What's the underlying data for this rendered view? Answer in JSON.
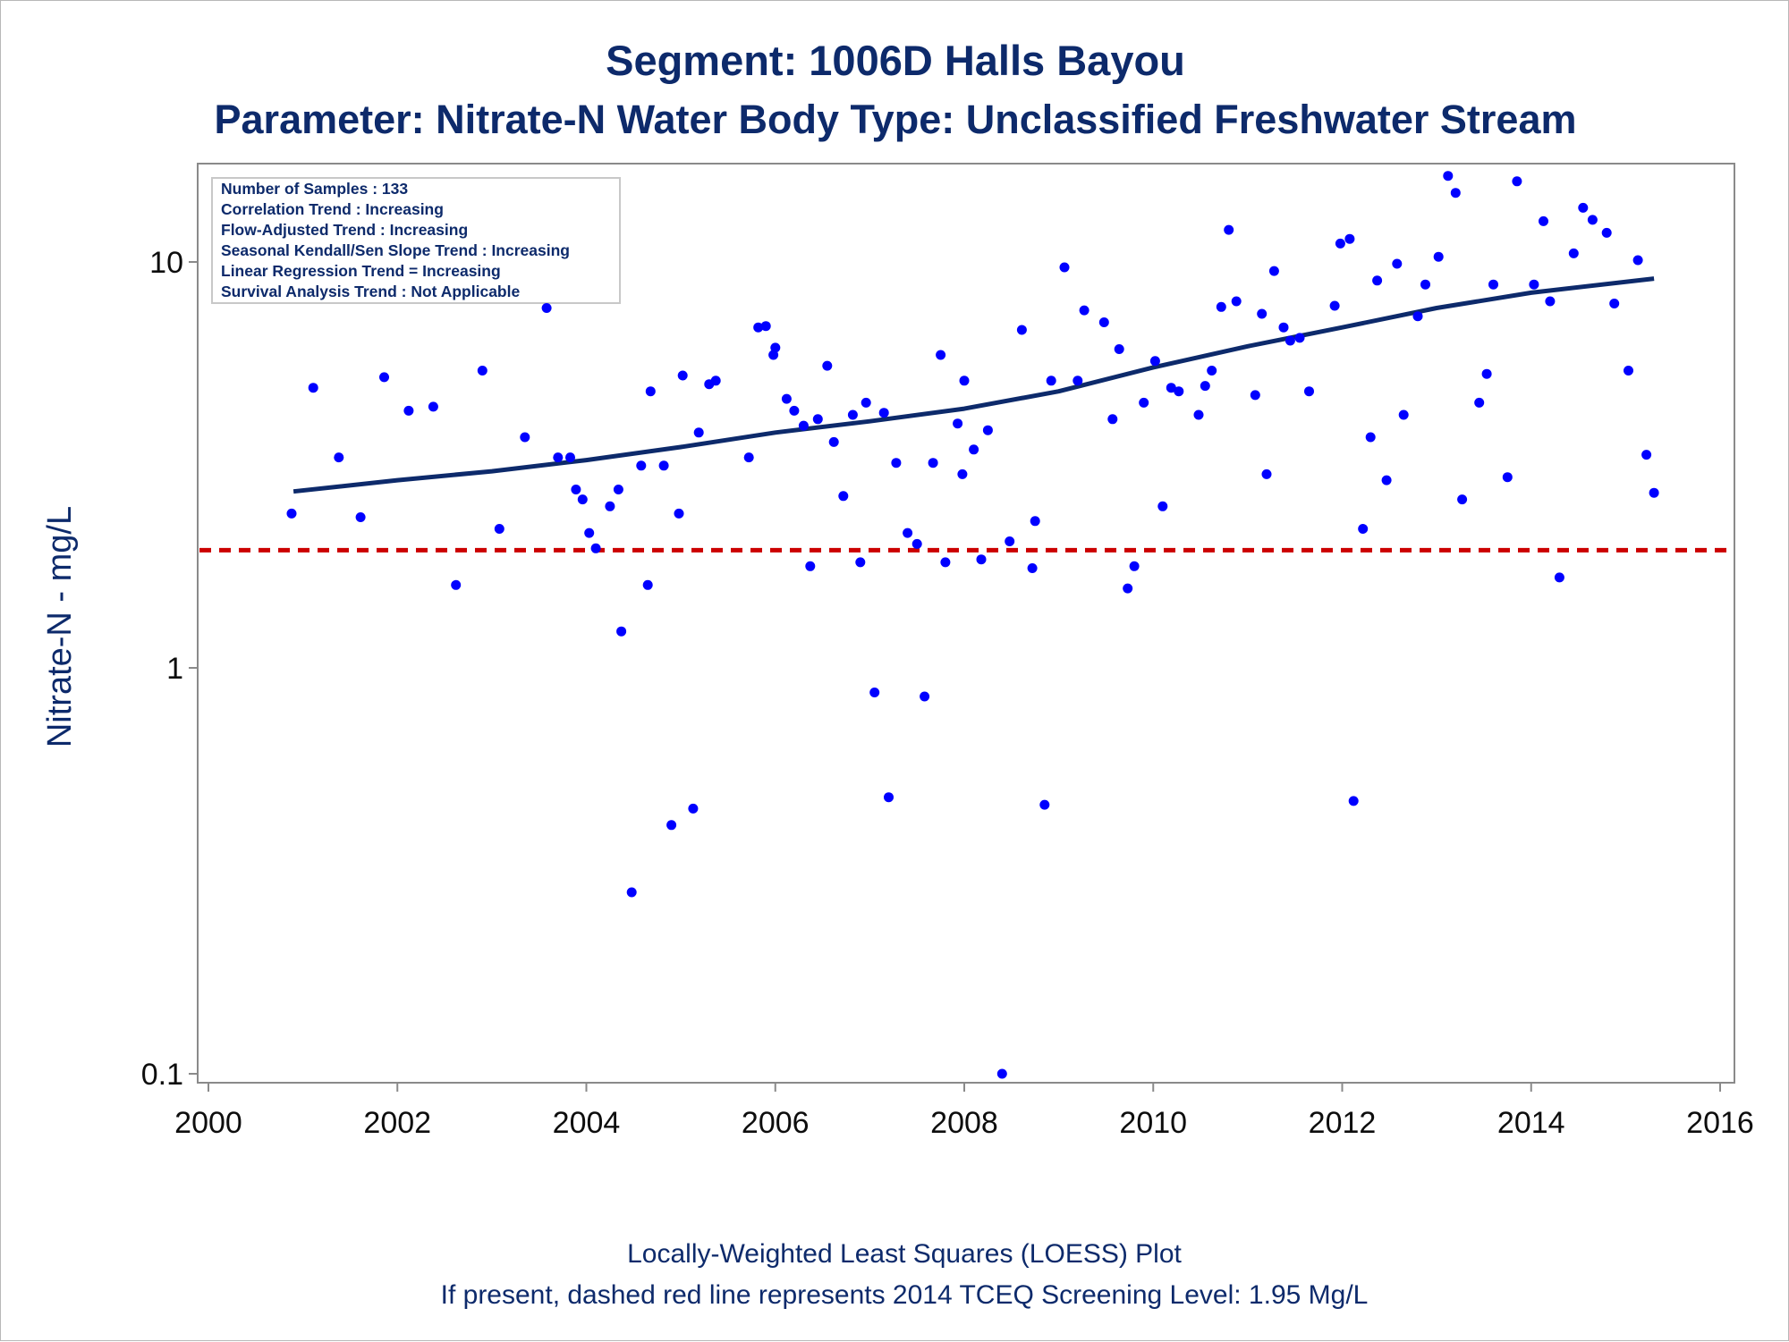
{
  "title": "Segment: 1006D  Halls Bayou",
  "subtitle": "Parameter: Nitrate-N   Water Body Type: Unclassified Freshwater Stream",
  "footnote1": "Locally-Weighted Least Squares (LOESS) Plot",
  "footnote2": "If present, dashed red line represents 2014 TCEQ Screening Level: 1.95 Mg/L",
  "stats": [
    "Number of Samples : 133",
    "Correlation Trend : Increasing",
    "Flow-Adjusted Trend : Increasing",
    "Seasonal Kendall/Sen Slope Trend : Increasing",
    "Linear Regression Trend = Increasing",
    "Survival Analysis Trend : Not Applicable"
  ],
  "colors": {
    "points": "#0000ff",
    "loess": "#0d2a6b",
    "screening": "#cc0000",
    "text": "#0d2a6b"
  },
  "chart_data": {
    "type": "scatter",
    "title": "Segment: 1006D  Halls Bayou",
    "subtitle": "Parameter: Nitrate-N   Water Body Type: Unclassified Freshwater Stream",
    "xlabel": "",
    "ylabel": "Nitrate-N - mg/L",
    "yscale": "log",
    "xlim": [
      2000,
      2016
    ],
    "ylim": [
      0.1,
      20
    ],
    "xticks": [
      "2000",
      "2002",
      "2004",
      "2006",
      "2008",
      "2010",
      "2012",
      "2014",
      "2016"
    ],
    "yticks": [
      "0.1",
      "1",
      "10"
    ],
    "grid": false,
    "screening_level": 1.95,
    "loess_line": [
      [
        2000.9,
        2.72
      ],
      [
        2002,
        2.9
      ],
      [
        2003,
        3.05
      ],
      [
        2004,
        3.25
      ],
      [
        2005,
        3.5
      ],
      [
        2006,
        3.8
      ],
      [
        2007,
        4.05
      ],
      [
        2008,
        4.35
      ],
      [
        2009,
        4.8
      ],
      [
        2010,
        5.5
      ],
      [
        2011,
        6.2
      ],
      [
        2012,
        6.9
      ],
      [
        2013,
        7.7
      ],
      [
        2014,
        8.4
      ],
      [
        2015.3,
        9.1
      ]
    ],
    "points": [
      [
        2000.88,
        2.4
      ],
      [
        2001.11,
        4.9
      ],
      [
        2001.38,
        3.3
      ],
      [
        2001.61,
        2.35
      ],
      [
        2001.86,
        5.2
      ],
      [
        2002.12,
        4.3
      ],
      [
        2002.38,
        4.4
      ],
      [
        2002.62,
        1.6
      ],
      [
        2002.9,
        5.4
      ],
      [
        2003.08,
        2.2
      ],
      [
        2003.35,
        3.7
      ],
      [
        2003.58,
        7.7
      ],
      [
        2003.7,
        3.3
      ],
      [
        2003.83,
        3.3
      ],
      [
        2003.89,
        2.75
      ],
      [
        2003.96,
        2.6
      ],
      [
        2004.03,
        2.15
      ],
      [
        2004.1,
        1.97
      ],
      [
        2004.25,
        2.5
      ],
      [
        2004.34,
        2.75
      ],
      [
        2004.37,
        1.23
      ],
      [
        2004.48,
        0.28
      ],
      [
        2004.58,
        3.15
      ],
      [
        2004.65,
        1.6
      ],
      [
        2004.68,
        4.8
      ],
      [
        2004.82,
        3.15
      ],
      [
        2004.9,
        0.41
      ],
      [
        2004.98,
        2.4
      ],
      [
        2005.02,
        5.25
      ],
      [
        2005.13,
        0.45
      ],
      [
        2005.19,
        3.8
      ],
      [
        2005.3,
        5.0
      ],
      [
        2005.37,
        5.1
      ],
      [
        2005.72,
        3.3
      ],
      [
        2005.82,
        6.9
      ],
      [
        2005.9,
        6.95
      ],
      [
        2005.98,
        5.9
      ],
      [
        2006.0,
        6.15
      ],
      [
        2006.12,
        4.6
      ],
      [
        2006.2,
        4.3
      ],
      [
        2006.3,
        3.95
      ],
      [
        2006.37,
        1.78
      ],
      [
        2006.45,
        4.1
      ],
      [
        2006.55,
        5.55
      ],
      [
        2006.62,
        3.6
      ],
      [
        2006.72,
        2.65
      ],
      [
        2006.82,
        4.2
      ],
      [
        2006.9,
        1.82
      ],
      [
        2006.96,
        4.5
      ],
      [
        2007.05,
        0.87
      ],
      [
        2007.15,
        4.25
      ],
      [
        2007.2,
        0.48
      ],
      [
        2007.28,
        3.2
      ],
      [
        2007.4,
        2.15
      ],
      [
        2007.5,
        2.02
      ],
      [
        2007.58,
        0.85
      ],
      [
        2007.67,
        3.2
      ],
      [
        2007.75,
        5.9
      ],
      [
        2007.8,
        1.82
      ],
      [
        2007.93,
        4.0
      ],
      [
        2007.98,
        3.0
      ],
      [
        2008.0,
        5.1
      ],
      [
        2008.1,
        3.45
      ],
      [
        2008.18,
        1.85
      ],
      [
        2008.25,
        3.85
      ],
      [
        2008.4,
        0.1
      ],
      [
        2008.48,
        2.05
      ],
      [
        2008.61,
        6.8
      ],
      [
        2008.72,
        1.76
      ],
      [
        2008.75,
        2.3
      ],
      [
        2008.85,
        0.46
      ],
      [
        2008.92,
        5.1
      ],
      [
        2009.06,
        9.7
      ],
      [
        2009.2,
        5.1
      ],
      [
        2009.27,
        7.6
      ],
      [
        2009.48,
        7.1
      ],
      [
        2009.57,
        4.1
      ],
      [
        2009.64,
        6.1
      ],
      [
        2009.73,
        1.57
      ],
      [
        2009.8,
        1.78
      ],
      [
        2009.9,
        4.5
      ],
      [
        2010.02,
        5.7
      ],
      [
        2010.1,
        2.5
      ],
      [
        2010.19,
        4.9
      ],
      [
        2010.27,
        4.8
      ],
      [
        2010.48,
        4.2
      ],
      [
        2010.55,
        4.95
      ],
      [
        2010.62,
        5.4
      ],
      [
        2010.72,
        7.75
      ],
      [
        2010.8,
        12.0
      ],
      [
        2010.88,
        8.0
      ],
      [
        2011.08,
        4.7
      ],
      [
        2011.15,
        7.45
      ],
      [
        2011.2,
        3.0
      ],
      [
        2011.28,
        9.5
      ],
      [
        2011.38,
        6.9
      ],
      [
        2011.45,
        6.4
      ],
      [
        2011.55,
        6.5
      ],
      [
        2011.65,
        4.8
      ],
      [
        2011.92,
        7.8
      ],
      [
        2011.98,
        11.1
      ],
      [
        2012.08,
        11.4
      ],
      [
        2012.12,
        0.47
      ],
      [
        2012.22,
        2.2
      ],
      [
        2012.3,
        3.7
      ],
      [
        2012.37,
        9.0
      ],
      [
        2012.47,
        2.9
      ],
      [
        2012.58,
        9.9
      ],
      [
        2012.65,
        4.2
      ],
      [
        2012.8,
        7.35
      ],
      [
        2012.88,
        8.8
      ],
      [
        2013.02,
        10.3
      ],
      [
        2013.12,
        16.3
      ],
      [
        2013.2,
        14.8
      ],
      [
        2013.27,
        2.6
      ],
      [
        2013.45,
        4.5
      ],
      [
        2013.53,
        5.3
      ],
      [
        2013.6,
        8.8
      ],
      [
        2013.75,
        2.95
      ],
      [
        2013.85,
        15.8
      ],
      [
        2014.03,
        8.8
      ],
      [
        2014.13,
        12.6
      ],
      [
        2014.2,
        8.0
      ],
      [
        2014.3,
        1.67
      ],
      [
        2014.45,
        10.5
      ],
      [
        2014.55,
        13.6
      ],
      [
        2014.65,
        12.7
      ],
      [
        2014.8,
        11.8
      ],
      [
        2014.88,
        7.9
      ],
      [
        2015.03,
        5.4
      ],
      [
        2015.13,
        10.1
      ],
      [
        2015.22,
        3.35
      ],
      [
        2015.3,
        2.7
      ]
    ]
  }
}
